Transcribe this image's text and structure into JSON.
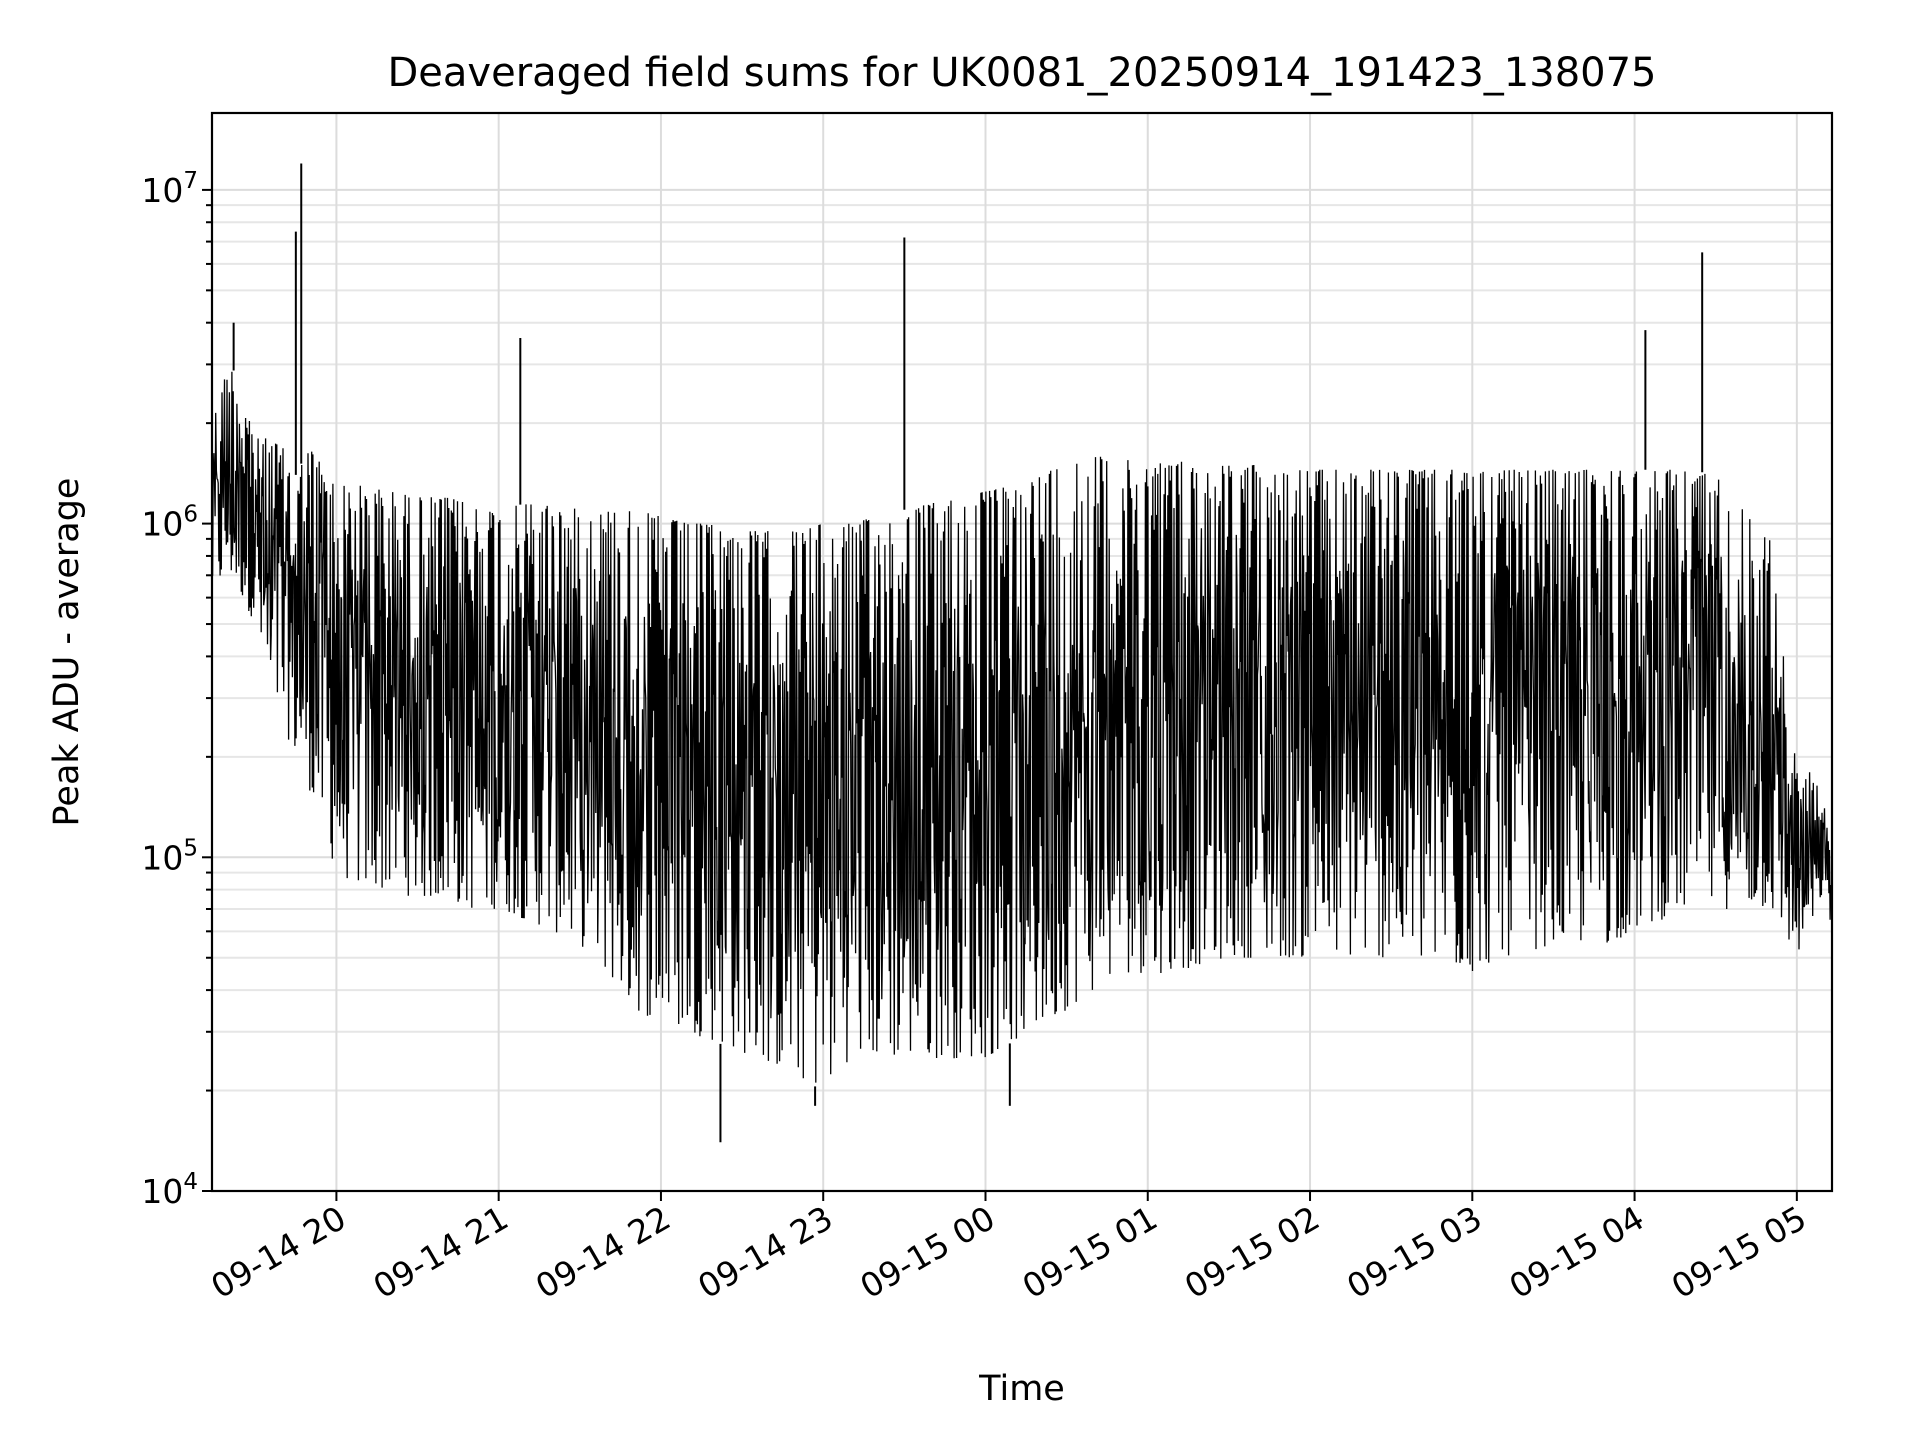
{
  "chart_data": {
    "type": "line",
    "title": "Deaveraged field sums for UK0081_20250914_191423_138075",
    "xlabel": "Time",
    "ylabel": "Peak ADU - average",
    "y_scale": "log",
    "ylim": [
      10000,
      17000000
    ],
    "xlim": [
      "2025-09-14 19:14",
      "2025-09-15 05:13"
    ],
    "x_ticks": [
      {
        "label": "09-14 20",
        "value": "2025-09-14 20:00"
      },
      {
        "label": "09-14 21",
        "value": "2025-09-14 21:00"
      },
      {
        "label": "09-14 22",
        "value": "2025-09-14 22:00"
      },
      {
        "label": "09-14 23",
        "value": "2025-09-14 23:00"
      },
      {
        "label": "09-15 00",
        "value": "2025-09-15 00:00"
      },
      {
        "label": "09-15 01",
        "value": "2025-09-15 01:00"
      },
      {
        "label": "09-15 02",
        "value": "2025-09-15 02:00"
      },
      {
        "label": "09-15 03",
        "value": "2025-09-15 03:00"
      },
      {
        "label": "09-15 04",
        "value": "2025-09-15 04:00"
      },
      {
        "label": "09-15 05",
        "value": "2025-09-15 05:00"
      }
    ],
    "y_ticks": [
      {
        "base": "10",
        "exp": "4",
        "value": 10000
      },
      {
        "base": "10",
        "exp": "5",
        "value": 100000
      },
      {
        "base": "10",
        "exp": "6",
        "value": 1000000
      },
      {
        "base": "10",
        "exp": "7",
        "value": 10000000
      }
    ],
    "grid": true,
    "line_color": "#000000",
    "series": [
      {
        "x": [
          "2025-09-14 19:14",
          "2025-09-14 19:20",
          "2025-09-14 19:25",
          "2025-09-14 19:30",
          "2025-09-14 19:35",
          "2025-09-14 19:40",
          "2025-09-14 19:45",
          "2025-09-14 19:50",
          "2025-09-14 19:55",
          "2025-09-14 20:00",
          "2025-09-14 20:10",
          "2025-09-14 20:20",
          "2025-09-14 20:30",
          "2025-09-14 20:40",
          "2025-09-14 20:50",
          "2025-09-14 21:00",
          "2025-09-14 21:10",
          "2025-09-14 21:20",
          "2025-09-14 21:30",
          "2025-09-14 21:40",
          "2025-09-14 21:50",
          "2025-09-14 22:00",
          "2025-09-14 22:10",
          "2025-09-14 22:20",
          "2025-09-14 22:30",
          "2025-09-14 22:40",
          "2025-09-14 22:50",
          "2025-09-14 23:00",
          "2025-09-14 23:10",
          "2025-09-14 23:20",
          "2025-09-14 23:30",
          "2025-09-14 23:40",
          "2025-09-14 23:50",
          "2025-09-15 00:00",
          "2025-09-15 00:10",
          "2025-09-15 00:20",
          "2025-09-15 00:30",
          "2025-09-15 00:40",
          "2025-09-15 00:50",
          "2025-09-15 01:00",
          "2025-09-15 01:10",
          "2025-09-15 01:20",
          "2025-09-15 01:30",
          "2025-09-15 01:40",
          "2025-09-15 01:50",
          "2025-09-15 02:00",
          "2025-09-15 02:10",
          "2025-09-15 02:20",
          "2025-09-15 02:30",
          "2025-09-15 02:40",
          "2025-09-15 02:50",
          "2025-09-15 03:00",
          "2025-09-15 03:10",
          "2025-09-15 03:20",
          "2025-09-15 03:30",
          "2025-09-15 03:40",
          "2025-09-15 03:50",
          "2025-09-15 04:00",
          "2025-09-15 04:10",
          "2025-09-15 04:20",
          "2025-09-15 04:30",
          "2025-09-15 04:40",
          "2025-09-15 04:50",
          "2025-09-15 05:00",
          "2025-09-15 05:05",
          "2025-09-15 05:10",
          "2025-09-15 05:13"
        ],
        "upper": [
          2000000,
          3000000,
          2700000,
          1800000,
          1800000,
          1700000,
          1400000,
          1700000,
          1500000,
          1300000,
          1300000,
          1250000,
          1200000,
          1200000,
          1150000,
          1100000,
          1150000,
          1150000,
          1100000,
          1100000,
          1100000,
          1050000,
          1000000,
          1000000,
          950000,
          950000,
          950000,
          1000000,
          1000000,
          1050000,
          1100000,
          1150000,
          1200000,
          1250000,
          1300000,
          1400000,
          1550000,
          1600000,
          1550000,
          1550000,
          1550000,
          1500000,
          1500000,
          1500000,
          1450000,
          1450000,
          1450000,
          1450000,
          1450000,
          1450000,
          1450000,
          1450000,
          1450000,
          1450000,
          1450000,
          1450000,
          1450000,
          1450000,
          1450000,
          1450000,
          1400000,
          1100000,
          900000,
          180000,
          180000,
          150000,
          90000
        ],
        "lower": [
          600000,
          700000,
          600000,
          500000,
          300000,
          250000,
          200000,
          160000,
          120000,
          90000,
          80000,
          80000,
          75000,
          75000,
          70000,
          70000,
          65000,
          60000,
          55000,
          45000,
          35000,
          32000,
          30000,
          28000,
          26000,
          24000,
          22000,
          20000,
          25000,
          25000,
          25000,
          25000,
          25000,
          25000,
          28000,
          30000,
          35000,
          40000,
          45000,
          45000,
          45000,
          48000,
          50000,
          50000,
          50000,
          50000,
          50000,
          50000,
          50000,
          48000,
          46000,
          45000,
          50000,
          52000,
          55000,
          55000,
          55000,
          60000,
          65000,
          70000,
          70000,
          70000,
          70000,
          50000,
          60000,
          80000,
          60000
        ],
        "spikes": [
          {
            "x": "2025-09-14 19:22",
            "y": 4000000
          },
          {
            "x": "2025-09-14 19:45",
            "y": 7500000
          },
          {
            "x": "2025-09-14 19:47",
            "y": 12000000
          },
          {
            "x": "2025-09-14 21:08",
            "y": 3600000
          },
          {
            "x": "2025-09-14 23:30",
            "y": 7200000
          },
          {
            "x": "2025-09-15 04:04",
            "y": 3800000
          },
          {
            "x": "2025-09-15 04:25",
            "y": 6500000
          },
          {
            "x": "2025-09-14 22:22",
            "y": 14000
          },
          {
            "x": "2025-09-15 00:09",
            "y": 18000
          },
          {
            "x": "2025-09-14 22:57",
            "y": 18000
          }
        ]
      }
    ]
  }
}
